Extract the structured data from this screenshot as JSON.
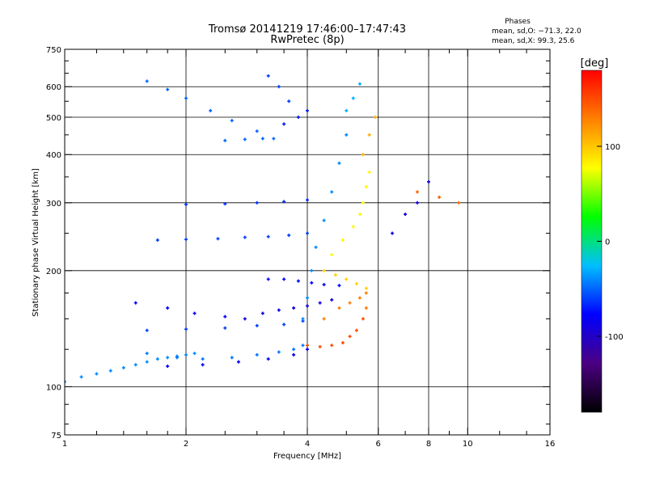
{
  "chart_data": {
    "type": "scatter",
    "title": "Tromsø 20141219 17:46:00–17:47:43",
    "subtitle": "RwPretec (8p)",
    "xlabel": "Frequency [MHz]",
    "ylabel": "Stationary phase Virtual Height [km]",
    "x_scale": "log",
    "y_scale": "log",
    "xlim": [
      1,
      16
    ],
    "ylim": [
      75,
      750
    ],
    "x_ticks": [
      1,
      2,
      4,
      6,
      8,
      10,
      16
    ],
    "y_ticks": [
      75,
      100,
      200,
      300,
      400,
      500,
      600,
      750
    ],
    "x_minor_ticks": [
      1.2,
      1.4,
      1.6,
      1.8,
      2.5,
      3,
      3.5,
      5,
      7,
      9,
      12,
      14
    ],
    "y_minor_ticks": [
      80,
      90,
      125,
      150,
      175,
      250,
      350,
      450,
      550,
      650,
      700
    ],
    "x_grid": [
      2,
      4,
      6,
      8,
      10
    ],
    "y_grid": [
      100,
      200,
      300,
      400,
      500,
      600
    ],
    "grid": true,
    "colorbar": {
      "label": "[deg]",
      "min": -180,
      "max": 180,
      "ticks": [
        100,
        0,
        -100
      ],
      "palette": [
        "#000000",
        "#4b0082",
        "#0000ff",
        "#00bfff",
        "#00ff00",
        "#ffff00",
        "#ff8000",
        "#ff0000"
      ]
    },
    "stats": {
      "heading": "Phases",
      "line_o": "mean, sd,O: −71.3, 22.0",
      "line_x": "mean, sd,X:  99.3, 25.6"
    },
    "traces": [
      {
        "x": [
          1.0,
          1.1,
          1.2,
          1.3,
          1.4,
          1.5,
          1.6,
          1.7,
          1.8,
          1.9,
          2.0,
          2.1
        ],
        "y": [
          103,
          106,
          108,
          110,
          112,
          114,
          116,
          118,
          119,
          120,
          121,
          122
        ],
        "phase": -40
      },
      {
        "x": [
          1.6,
          1.9,
          2.2,
          2.6,
          3.0,
          3.4,
          3.7,
          3.9
        ],
        "y": [
          122,
          119,
          118,
          119,
          121,
          123,
          125,
          128
        ],
        "phase": -45
      },
      {
        "x": [
          1.8,
          2.2,
          2.7,
          3.2,
          3.7,
          4.0
        ],
        "y": [
          113,
          114,
          116,
          118,
          121,
          125
        ],
        "phase": -80
      },
      {
        "x": [
          1.6,
          2.0,
          2.5,
          3.0,
          3.5,
          3.9
        ],
        "y": [
          140,
          141,
          142,
          144,
          145,
          148
        ],
        "phase": -60
      },
      {
        "x": [
          1.5,
          1.8,
          2.1,
          2.5
        ],
        "y": [
          165,
          160,
          155,
          152
        ],
        "phase": -80
      },
      {
        "x": [
          2.8,
          3.1,
          3.4,
          3.7,
          4.0,
          4.3,
          4.6
        ],
        "y": [
          150,
          155,
          158,
          160,
          162,
          165,
          168
        ],
        "phase": -90
      },
      {
        "x": [
          3.2,
          3.5,
          3.8,
          4.1,
          4.4,
          4.8
        ],
        "y": [
          190,
          190,
          188,
          186,
          184,
          183
        ],
        "phase": -75
      },
      {
        "x": [
          1.7,
          2.0,
          2.4,
          2.8,
          3.2,
          3.6,
          4.0
        ],
        "y": [
          240,
          241,
          242,
          244,
          245,
          247,
          250
        ],
        "phase": -60
      },
      {
        "x": [
          2.0,
          2.5,
          3.0,
          3.5,
          4.0
        ],
        "y": [
          297,
          298,
          300,
          302,
          305
        ],
        "phase": -65
      },
      {
        "x": [
          1.6,
          1.8,
          2.0,
          2.3,
          2.6,
          3.0,
          3.3
        ],
        "y": [
          620,
          590,
          560,
          520,
          490,
          460,
          440
        ],
        "phase": -50
      },
      {
        "x": [
          2.5,
          2.8,
          3.1
        ],
        "y": [
          435,
          438,
          440
        ],
        "phase": -50
      },
      {
        "x": [
          3.2,
          3.4,
          3.6
        ],
        "y": [
          640,
          600,
          550
        ],
        "phase": -60
      },
      {
        "x": [
          3.5,
          3.8,
          4.0
        ],
        "y": [
          480,
          500,
          520
        ],
        "phase": -70
      },
      {
        "x": [
          3.9,
          4.0,
          4.1,
          4.2,
          4.4,
          4.6,
          4.8,
          5.0
        ],
        "y": [
          150,
          170,
          200,
          230,
          270,
          320,
          380,
          450
        ],
        "phase": -40
      },
      {
        "x": [
          4.0,
          4.3,
          4.6,
          4.9,
          5.1,
          5.3,
          5.5
        ],
        "y": [
          128,
          127,
          128,
          130,
          135,
          140,
          150
        ],
        "phase": 150
      },
      {
        "x": [
          4.4,
          4.8,
          5.1,
          5.4,
          5.6,
          5.6
        ],
        "y": [
          150,
          160,
          165,
          170,
          175,
          160
        ],
        "phase": 130
      },
      {
        "x": [
          4.4,
          4.7,
          5.0,
          5.3,
          5.6
        ],
        "y": [
          200,
          195,
          190,
          185,
          180
        ],
        "phase": 95
      },
      {
        "x": [
          4.6,
          4.9,
          5.2,
          5.4,
          5.5,
          5.6,
          5.7
        ],
        "y": [
          220,
          240,
          260,
          280,
          300,
          330,
          360
        ],
        "phase": 80
      },
      {
        "x": [
          5.0,
          5.2,
          5.4
        ],
        "y": [
          520,
          560,
          610
        ],
        "phase": -30
      },
      {
        "x": [
          5.5,
          5.7,
          5.9
        ],
        "y": [
          400,
          450,
          500
        ],
        "phase": 110
      },
      {
        "x": [
          6.5,
          7.0,
          7.5,
          8.0
        ],
        "y": [
          250,
          280,
          300,
          340
        ],
        "phase": -90
      },
      {
        "x": [
          7.5,
          8.5,
          9.5
        ],
        "y": [
          320,
          310,
          300
        ],
        "phase": 140
      }
    ]
  }
}
